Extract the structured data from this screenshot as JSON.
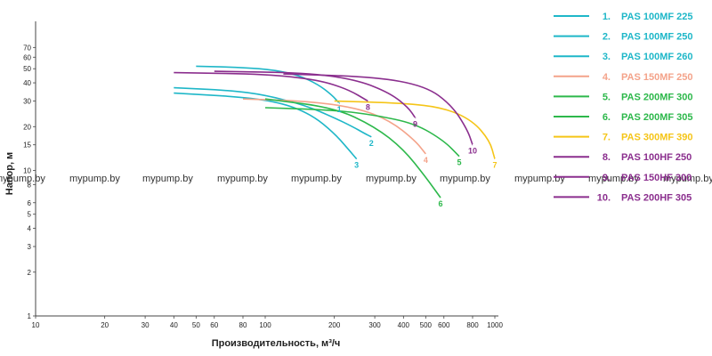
{
  "chart_data": {
    "type": "line",
    "xlabel": "Производительность, м³/ч",
    "ylabel": "Напор, м",
    "x_scale": "log",
    "y_scale": "log",
    "xlim": [
      10,
      1000
    ],
    "ylim": [
      1,
      100
    ],
    "x_ticks": [
      10,
      20,
      30,
      40,
      50,
      60,
      80,
      100,
      200,
      300,
      400,
      500,
      600,
      800,
      1000
    ],
    "y_ticks": [
      1,
      2,
      3,
      4,
      5,
      6,
      8,
      10,
      15,
      20,
      30,
      40,
      50,
      60,
      70
    ],
    "grid": false,
    "legend_position": "right",
    "series": [
      {
        "id": "1",
        "name": "PAS 100MF 225",
        "color": "#1fb7c8",
        "x": [
          50,
          80,
          110,
          140,
          170,
          195,
          210
        ],
        "y": [
          52,
          51,
          49,
          45,
          39,
          33,
          29
        ]
      },
      {
        "id": "2",
        "name": "PAS 100MF 250",
        "color": "#1fb7c8",
        "x": [
          40,
          70,
          100,
          150,
          200,
          240,
          270,
          290
        ],
        "y": [
          37,
          35.5,
          33,
          28,
          23,
          20,
          18,
          17
        ]
      },
      {
        "id": "3",
        "name": "PAS 100MF 260",
        "color": "#1fb7c8",
        "x": [
          40,
          80,
          120,
          160,
          200,
          230,
          250
        ],
        "y": [
          34,
          32,
          29,
          24,
          18,
          14,
          12
        ]
      },
      {
        "id": "4",
        "name": "PAS 150MF 250",
        "color": "#f4a38a",
        "x": [
          80,
          150,
          250,
          350,
          450,
          500
        ],
        "y": [
          31,
          30,
          27,
          22,
          16,
          13
        ]
      },
      {
        "id": "5",
        "name": "PAS 200MF 300",
        "color": "#2db84b",
        "x": [
          100,
          200,
          300,
          450,
          600,
          700
        ],
        "y": [
          27,
          26,
          24,
          21,
          16,
          12.5
        ]
      },
      {
        "id": "6",
        "name": "PAS 200MF 305",
        "color": "#2db84b",
        "x": [
          100,
          200,
          300,
          400,
          500,
          580
        ],
        "y": [
          31,
          27,
          20,
          14,
          9,
          6.5
        ]
      },
      {
        "id": "7",
        "name": "PAS 300MF 390",
        "color": "#f5c518",
        "x": [
          200,
          400,
          600,
          800,
          950,
          1000
        ],
        "y": [
          30,
          29,
          27,
          22,
          16,
          12
        ]
      },
      {
        "id": "8",
        "name": "PAS 100HF 250",
        "color": "#8b2f8e",
        "x": [
          40,
          100,
          170,
          230,
          280
        ],
        "y": [
          47,
          46,
          42,
          36,
          30
        ]
      },
      {
        "id": "9",
        "name": "PAS 150HF 300",
        "color": "#8b2f8e",
        "x": [
          60,
          150,
          250,
          350,
          420,
          450
        ],
        "y": [
          48,
          47,
          42,
          34,
          27,
          23
        ]
      },
      {
        "id": "10",
        "name": "PAS 200HF 305",
        "color": "#8b2f8e",
        "x": [
          120,
          300,
          500,
          650,
          760,
          800
        ],
        "y": [
          46,
          44,
          38,
          28,
          19,
          15
        ]
      }
    ]
  },
  "watermark": {
    "text": "mypump.by"
  }
}
